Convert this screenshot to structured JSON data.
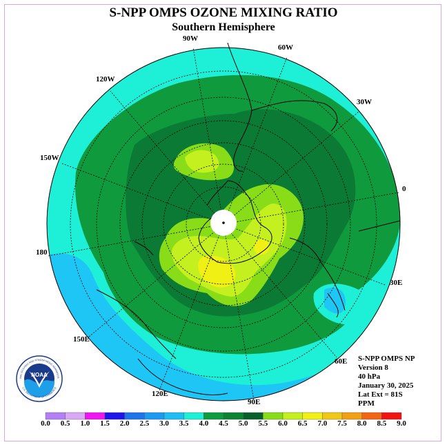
{
  "title": "S-NPP OMPS OZONE MIXING RATIO",
  "subtitle": "Southern Hemisphere",
  "longitude_labels": [
    "90W",
    "60W",
    "30W",
    "0",
    "30E",
    "60E",
    "90E",
    "120E",
    "150E",
    "180",
    "150W",
    "120W"
  ],
  "info": {
    "product": "S-NPP OMPS NP",
    "version": "Version 8",
    "level": "40 hPa",
    "date": "January 30, 2025",
    "lat_ext": "Lat Ext = 81S",
    "units": "PPM"
  },
  "logo": {
    "text": "NOAA",
    "ring_text": "NATIONAL OCEANIC AND ATMOSPHERIC ADMINISTRATION",
    "ring_text_bottom": "U.S. DEPARTMENT OF COMMERCE"
  },
  "colorbar": {
    "labels": [
      "0.0",
      "0.5",
      "1.0",
      "1.5",
      "2.0",
      "2.5",
      "3.0",
      "3.5",
      "4.0",
      "4.5",
      "5.0",
      "5.5",
      "6.0",
      "6.5",
      "7.0",
      "7.5",
      "8.0",
      "8.5",
      "9.0"
    ],
    "colors": [
      "#b27ff5",
      "#d8a8f5",
      "#ee16ee",
      "#1e16e8",
      "#1e74e8",
      "#1e99f2",
      "#1ebef2",
      "#1ef0d8",
      "#0e9a3e",
      "#0a8432",
      "#06602c",
      "#88dc18",
      "#c4f020",
      "#f0f014",
      "#f0c814",
      "#f0a014",
      "#f06414",
      "#f01414",
      "#8a5a3c"
    ]
  },
  "map_colors": {
    "r35_40": "#1ef0d8",
    "r30_35": "#1ec6f6",
    "r40_45": "#0f9a3e",
    "r45_50": "#0a7a34",
    "r50_55": "#88dc18",
    "r55_60": "#c4f020",
    "r60_65": "#f0f014",
    "coast": "#000000",
    "grid": "#000000"
  }
}
